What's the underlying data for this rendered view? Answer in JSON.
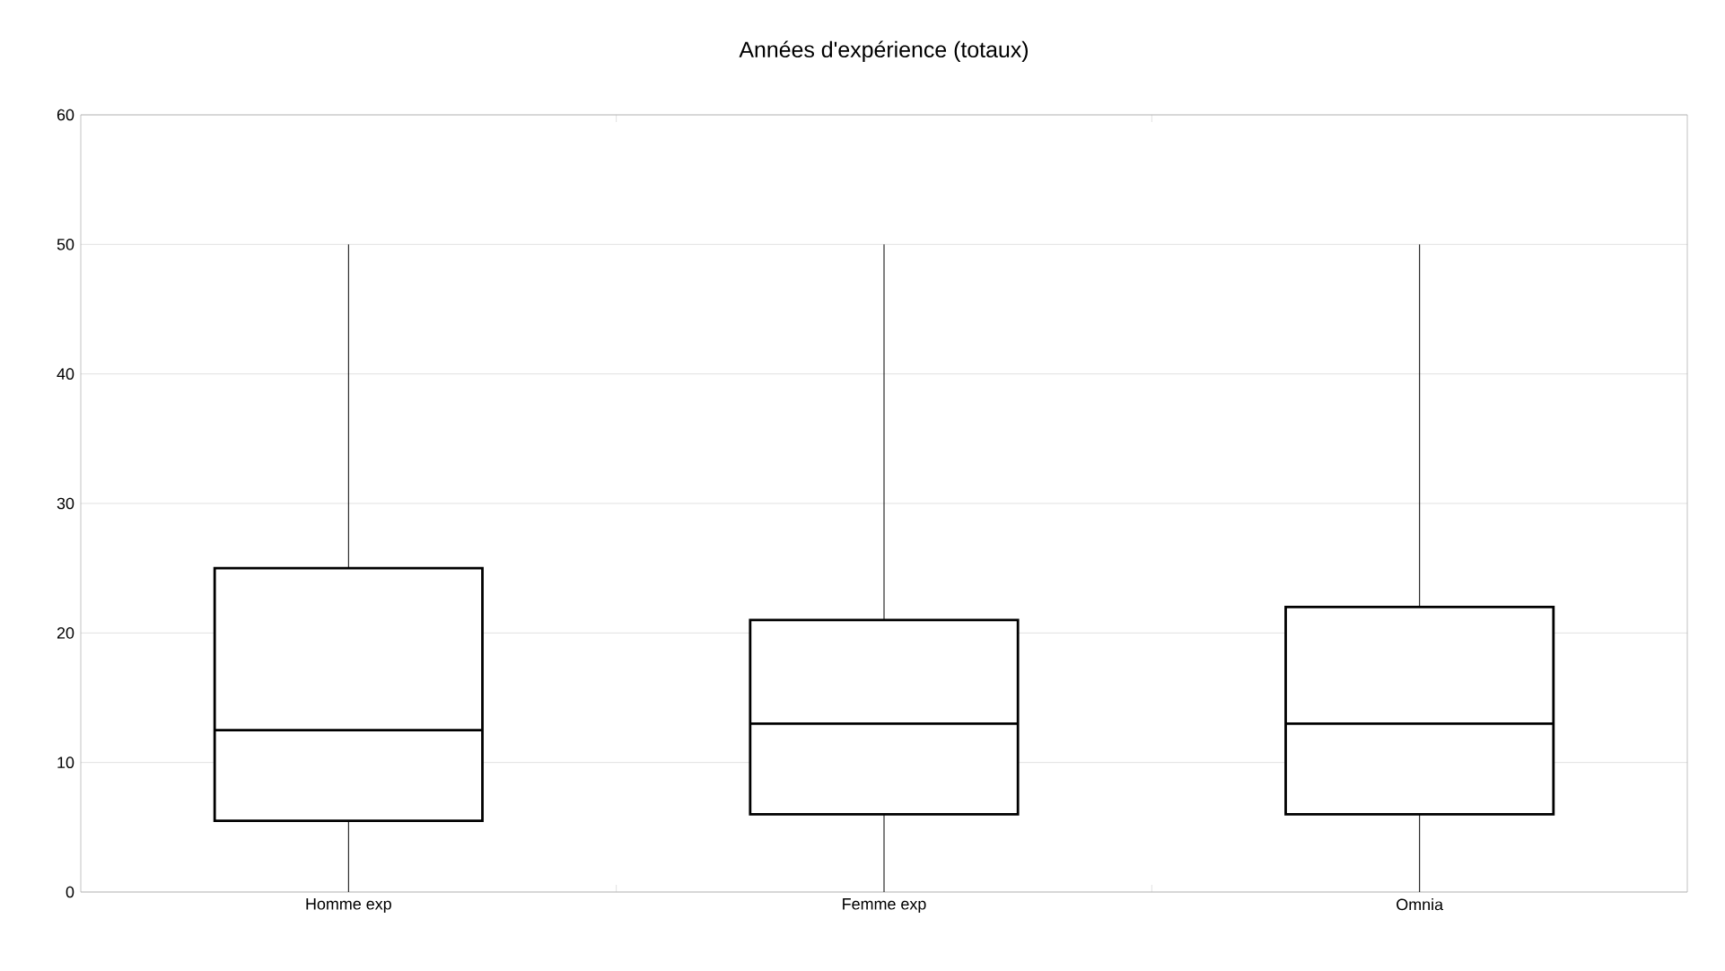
{
  "chart_data": {
    "type": "box",
    "title": "Années d'expérience (totaux)",
    "categories": [
      "Homme exp",
      "Femme exp",
      "Omnia"
    ],
    "boxes": [
      {
        "low": 0,
        "q1": 5.5,
        "median": 12.5,
        "q3": 25,
        "high": 50
      },
      {
        "low": 0,
        "q1": 6,
        "median": 13,
        "q3": 21,
        "high": 50
      },
      {
        "low": 0,
        "q1": 6,
        "median": 13,
        "q3": 22,
        "high": 50
      }
    ],
    "color": "#000000",
    "ylim": [
      0,
      60
    ],
    "yticks": [
      0,
      10,
      20,
      30,
      40,
      50,
      60
    ],
    "grid": "y"
  }
}
